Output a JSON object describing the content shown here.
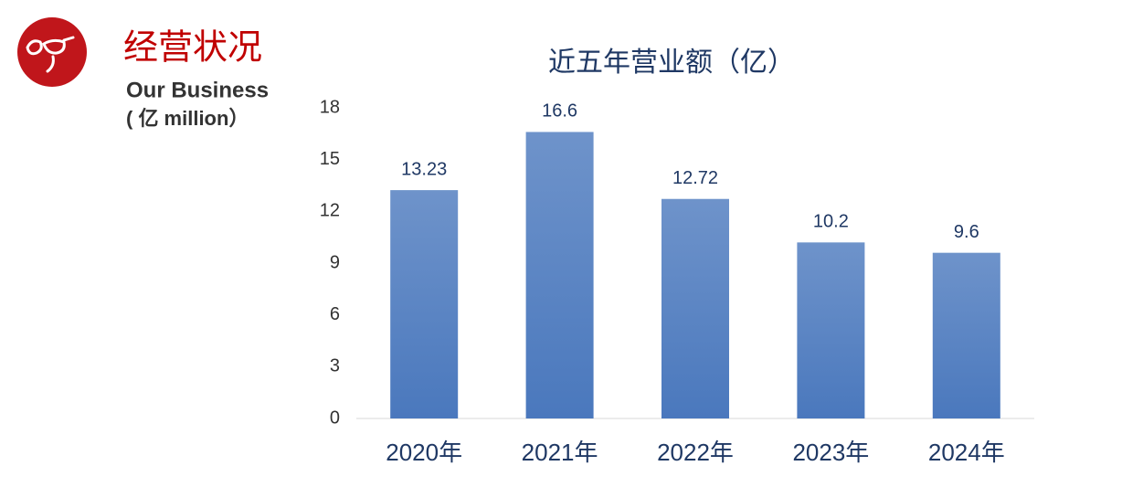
{
  "header": {
    "title": "经营状况",
    "subtitle": "Our Business",
    "note": "( 亿  million）"
  },
  "chart_data": {
    "type": "bar",
    "title": "近五年营业额（亿）",
    "categories": [
      "2020年",
      "2021年",
      "2022年",
      "2023年",
      "2024年"
    ],
    "values": [
      13.23,
      16.6,
      12.72,
      10.2,
      9.6
    ],
    "color": "#4a78bd",
    "ylim": [
      0,
      18
    ],
    "yticks": [
      0,
      3,
      6,
      9,
      12,
      15,
      18
    ],
    "grid": false
  }
}
